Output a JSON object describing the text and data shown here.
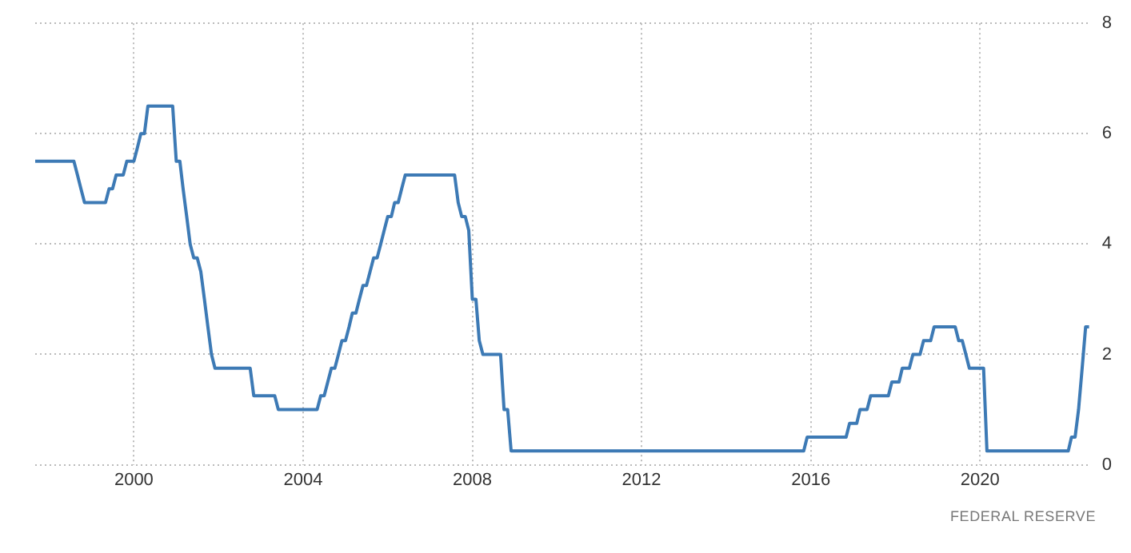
{
  "chart_data": {
    "type": "line",
    "x": [
      "1997-09",
      "1998-08",
      "1998-09",
      "1998-10",
      "1998-11",
      "1999-05",
      "1999-06",
      "1999-07",
      "1999-08",
      "1999-10",
      "1999-11",
      "2000-01",
      "2000-02",
      "2000-03",
      "2000-04",
      "2000-05",
      "2000-12",
      "2001-01",
      "2001-02",
      "2001-03",
      "2001-04",
      "2001-05",
      "2001-06",
      "2001-07",
      "2001-08",
      "2001-09",
      "2001-10",
      "2001-11",
      "2001-12",
      "2002-10",
      "2002-11",
      "2003-05",
      "2003-06",
      "2004-05",
      "2004-06",
      "2004-07",
      "2004-08",
      "2004-09",
      "2004-10",
      "2004-11",
      "2004-12",
      "2005-01",
      "2005-02",
      "2005-03",
      "2005-04",
      "2005-05",
      "2005-06",
      "2005-07",
      "2005-08",
      "2005-09",
      "2005-10",
      "2005-11",
      "2005-12",
      "2006-01",
      "2006-02",
      "2006-03",
      "2006-04",
      "2006-05",
      "2006-06",
      "2007-08",
      "2007-09",
      "2007-10",
      "2007-11",
      "2007-12",
      "2008-01",
      "2008-02",
      "2008-03",
      "2008-04",
      "2008-09",
      "2008-10",
      "2008-11",
      "2008-12",
      "2015-11",
      "2015-12",
      "2016-11",
      "2016-12",
      "2017-02",
      "2017-03",
      "2017-05",
      "2017-06",
      "2017-11",
      "2017-12",
      "2018-02",
      "2018-03",
      "2018-05",
      "2018-06",
      "2018-08",
      "2018-09",
      "2018-11",
      "2018-12",
      "2019-06",
      "2019-07",
      "2019-08",
      "2019-09",
      "2019-10",
      "2020-02",
      "2020-03",
      "2022-02",
      "2022-03",
      "2022-04",
      "2022-05",
      "2022-06",
      "2022-07",
      "2022-08"
    ],
    "series": [
      {
        "color": "#3d7ab5",
        "values": [
          5.5,
          5.5,
          5.25,
          5.0,
          4.75,
          4.75,
          5.0,
          5.0,
          5.25,
          5.25,
          5.5,
          5.5,
          5.75,
          6.0,
          6.0,
          6.5,
          6.5,
          5.5,
          5.5,
          5.0,
          4.5,
          4.0,
          3.75,
          3.75,
          3.5,
          3.0,
          2.5,
          2.0,
          1.75,
          1.75,
          1.25,
          1.25,
          1.0,
          1.0,
          1.25,
          1.25,
          1.5,
          1.75,
          1.75,
          2.0,
          2.25,
          2.25,
          2.5,
          2.75,
          2.75,
          3.0,
          3.25,
          3.25,
          3.5,
          3.75,
          3.75,
          4.0,
          4.25,
          4.5,
          4.5,
          4.75,
          4.75,
          5.0,
          5.25,
          5.25,
          4.75,
          4.5,
          4.5,
          4.25,
          3.0,
          3.0,
          2.25,
          2.0,
          2.0,
          1.0,
          1.0,
          0.25,
          0.25,
          0.5,
          0.5,
          0.75,
          0.75,
          1.0,
          1.0,
          1.25,
          1.25,
          1.5,
          1.5,
          1.75,
          1.75,
          2.0,
          2.0,
          2.25,
          2.25,
          2.5,
          2.5,
          2.25,
          2.25,
          2.0,
          1.75,
          1.75,
          0.25,
          0.25,
          0.5,
          0.5,
          1.0,
          1.75,
          2.5,
          2.5
        ]
      }
    ],
    "xlim": [
      "1997-09",
      "2022-08"
    ],
    "xticks": [
      "2000",
      "2004",
      "2008",
      "2012",
      "2016",
      "2020"
    ],
    "ylim": [
      0,
      8
    ],
    "yticks": [
      0,
      2,
      4,
      6,
      8
    ],
    "grid": true,
    "legend": false,
    "marker": "none",
    "line_style": "solid",
    "annotations": [
      "FEDERAL RESERVE"
    ]
  }
}
